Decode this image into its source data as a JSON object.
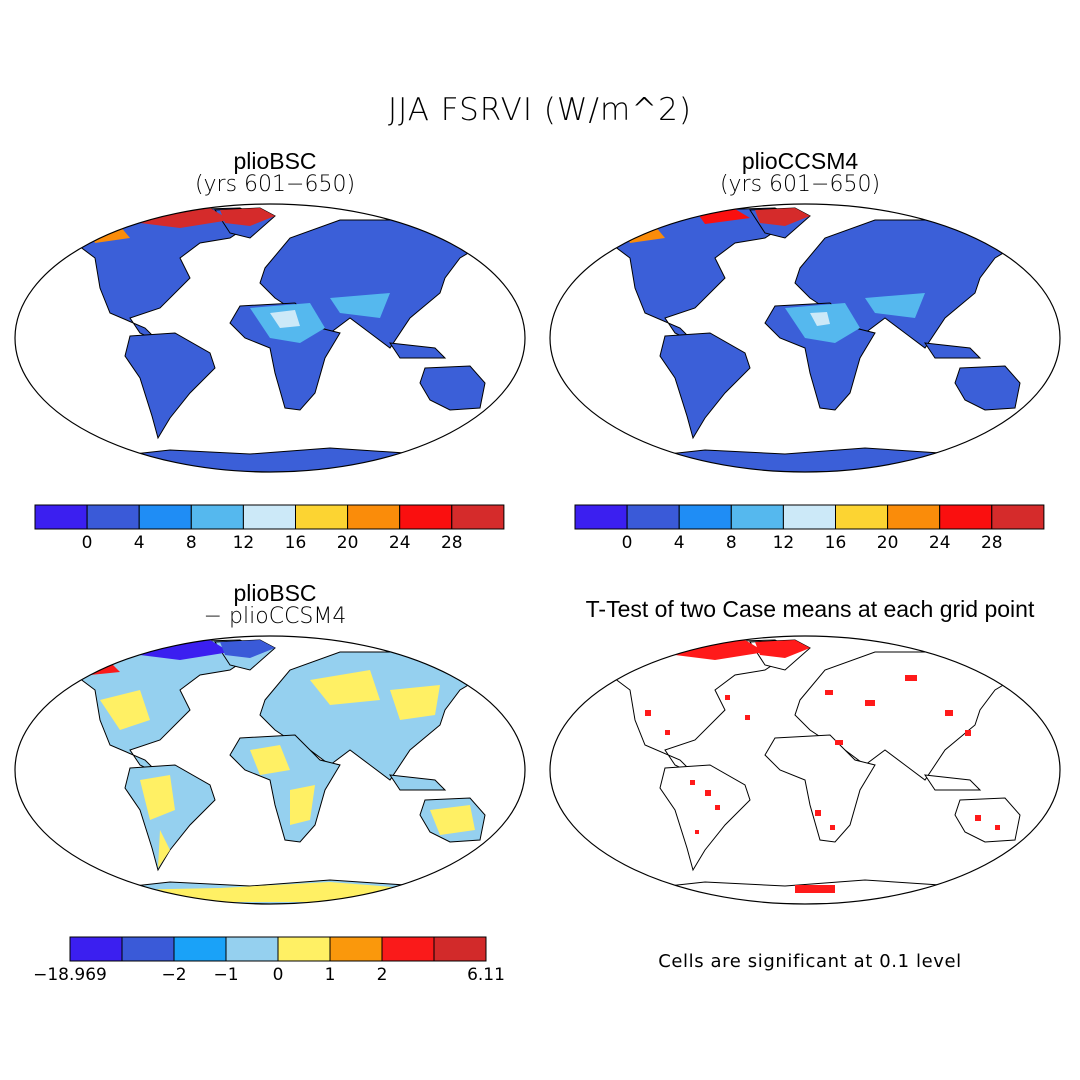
{
  "figure": {
    "title": "JJA FSRVI (W/m^2)",
    "land_color": "#3b5fd8",
    "ocean_color": "#ffffff"
  },
  "panels": [
    {
      "title": "plioBSC",
      "subtitle": "(yrs 601−650)"
    },
    {
      "title": "plioCCSM4",
      "subtitle": "(yrs 601−650)"
    },
    {
      "title": "plioBSC",
      "subtitle": "− plioCCSM4"
    },
    {
      "title": "T-Test of two Case means at each grid point",
      "subtitle": ""
    }
  ],
  "colorbars": {
    "abs": {
      "colors": [
        "#3b1ff0",
        "#3a5ad8",
        "#1f8df5",
        "#55b8ee",
        "#cce9f8",
        "#fcd432",
        "#fa8c0a",
        "#fa0f0f",
        "#d52b2b"
      ],
      "labels": [
        "0",
        "4",
        "8",
        "12",
        "16",
        "20",
        "24",
        "28"
      ]
    },
    "diff": {
      "colors": [
        "#3b1ff0",
        "#3a5ad8",
        "#1aa2f8",
        "#95d0ef",
        "#fff064",
        "#fa980c",
        "#fa1a1a",
        "#d22a2a"
      ],
      "labels": [
        "−18.969",
        "−2",
        "−1",
        "0",
        "1",
        "2",
        "6.11"
      ]
    }
  },
  "ttest": {
    "note": "Cells are significant at 0.1 level",
    "significant_color": "#ff1a1a"
  }
}
